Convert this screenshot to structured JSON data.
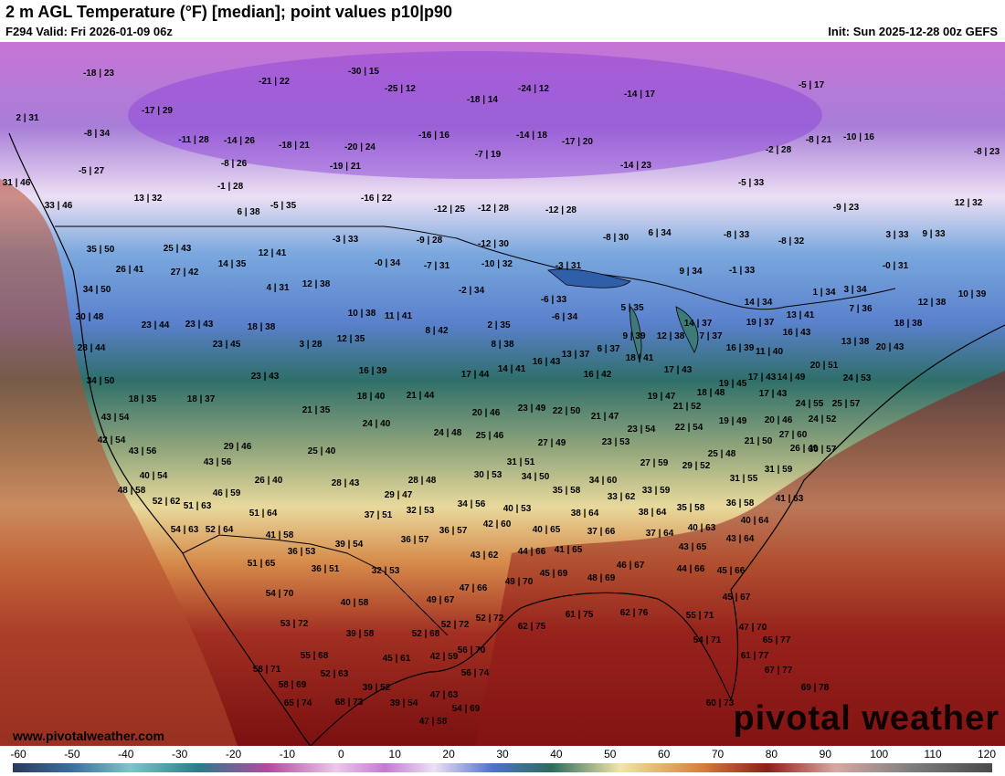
{
  "header": {
    "title": "2 m AGL Temperature (°F) [median]; point values p10|p90",
    "valid": "F294 Valid: Fri 2026-01-09 06z",
    "init": "Init: Sun 2025-12-28 00z GEFS"
  },
  "footer": {
    "url": "www.pivotalweather.com",
    "brand": "pivotal weather"
  },
  "colorbar": {
    "ticks": [
      "-60",
      "-50",
      "-40",
      "-30",
      "-20",
      "-10",
      "0",
      "10",
      "20",
      "30",
      "40",
      "50",
      "60",
      "70",
      "80",
      "90",
      "100",
      "110",
      "120"
    ]
  },
  "points": [
    {
      "t": "-18|23"
    },
    {
      "t": "-30|15"
    },
    {
      "t": "-21|22"
    },
    {
      "t": "-25|12"
    },
    {
      "t": "-24|12"
    },
    {
      "t": "-18|14"
    },
    {
      "t": "-14|17"
    },
    {
      "t": "-5|17"
    },
    {
      "t": "2|31"
    },
    {
      "t": "-17|29"
    },
    {
      "t": "-8|34"
    },
    {
      "t": "-11|28"
    },
    {
      "t": "-14|26"
    },
    {
      "t": "-18|21"
    },
    {
      "t": "-20|24"
    },
    {
      "t": "-16|16"
    },
    {
      "t": "-14|18"
    },
    {
      "t": "-17|20"
    },
    {
      "t": "-8|21"
    },
    {
      "t": "-10|16"
    },
    {
      "t": "-2|28"
    },
    {
      "t": "-8|23"
    },
    {
      "t": "-5|27"
    },
    {
      "t": "-8|26"
    },
    {
      "t": "-19|21"
    },
    {
      "t": "-7|19"
    },
    {
      "t": "-14|23"
    },
    {
      "t": "-1|28"
    },
    {
      "t": "-5|33"
    },
    {
      "t": "31|46"
    },
    {
      "t": "13|32"
    },
    {
      "t": "-16|22"
    },
    {
      "t": "33|46"
    },
    {
      "t": "6|38"
    },
    {
      "t": "-5|35"
    },
    {
      "t": "-12|25"
    },
    {
      "t": "-12|28"
    },
    {
      "t": "-12|28"
    },
    {
      "t": "-9|23"
    },
    {
      "t": "12|32"
    },
    {
      "t": "35|50"
    },
    {
      "t": "25|43"
    },
    {
      "t": "12|41"
    },
    {
      "t": "-3|33"
    },
    {
      "t": "-9|28"
    },
    {
      "t": "-12|30"
    },
    {
      "t": "-8|30"
    },
    {
      "t": "6|34"
    },
    {
      "t": "-8|33"
    },
    {
      "t": "-8|32"
    },
    {
      "t": "3|33"
    },
    {
      "t": "9|33"
    },
    {
      "t": "26|41"
    },
    {
      "t": "27|42"
    },
    {
      "t": "14|35"
    },
    {
      "t": "-0|34"
    },
    {
      "t": "-7|31"
    },
    {
      "t": "-10|32"
    },
    {
      "t": "-3|31"
    },
    {
      "t": "9|34"
    },
    {
      "t": "-1|33"
    },
    {
      "t": "-0|31"
    },
    {
      "t": "34|50"
    },
    {
      "t": "4|31"
    },
    {
      "t": "12|38"
    },
    {
      "t": "-2|34"
    },
    {
      "t": "-6|33"
    },
    {
      "t": "1|34"
    },
    {
      "t": "3|34"
    },
    {
      "t": "10|39"
    },
    {
      "t": "12|38"
    },
    {
      "t": "30|48"
    },
    {
      "t": "23|44"
    },
    {
      "t": "23|43"
    },
    {
      "t": "18|38"
    },
    {
      "t": "10|38"
    },
    {
      "t": "11|41"
    },
    {
      "t": "2|35"
    },
    {
      "t": "-6|34"
    },
    {
      "t": "5|35"
    },
    {
      "t": "14|34"
    },
    {
      "t": "7|36"
    },
    {
      "t": "13|38"
    },
    {
      "t": "18|38"
    },
    {
      "t": "28|44"
    },
    {
      "t": "23|45"
    },
    {
      "t": "3|28"
    },
    {
      "t": "12|35"
    },
    {
      "t": "8|42"
    },
    {
      "t": "8|38"
    },
    {
      "t": "6|37"
    },
    {
      "t": "13|37"
    },
    {
      "t": "9|39"
    },
    {
      "t": "12|38"
    },
    {
      "t": "14|37"
    },
    {
      "t": "19|37"
    },
    {
      "t": "7|37"
    },
    {
      "t": "16|39"
    },
    {
      "t": "16|43"
    },
    {
      "t": "13|41"
    },
    {
      "t": "20|43"
    },
    {
      "t": "34|50"
    },
    {
      "t": "23|43"
    },
    {
      "t": "16|39"
    },
    {
      "t": "17|44"
    },
    {
      "t": "14|41"
    },
    {
      "t": "16|43"
    },
    {
      "t": "16|42"
    },
    {
      "t": "18|41"
    },
    {
      "t": "17|43"
    },
    {
      "t": "17|43"
    },
    {
      "t": "11|40"
    },
    {
      "t": "14|49"
    },
    {
      "t": "20|51"
    },
    {
      "t": "24|53"
    },
    {
      "t": "18|35"
    },
    {
      "t": "18|37"
    },
    {
      "t": "21|35"
    },
    {
      "t": "18|40"
    },
    {
      "t": "21|44"
    },
    {
      "t": "23|49"
    },
    {
      "t": "22|50"
    },
    {
      "t": "21|47"
    },
    {
      "t": "19|47"
    },
    {
      "t": "18|48"
    },
    {
      "t": "19|45"
    },
    {
      "t": "17|43"
    },
    {
      "t": "24|55"
    },
    {
      "t": "25|57"
    },
    {
      "t": "43|54"
    },
    {
      "t": "42|54"
    },
    {
      "t": "24|40"
    },
    {
      "t": "20|46"
    },
    {
      "t": "24|48"
    },
    {
      "t": "25|46"
    },
    {
      "t": "27|49"
    },
    {
      "t": "21|52"
    },
    {
      "t": "23|54"
    },
    {
      "t": "22|54"
    },
    {
      "t": "19|49"
    },
    {
      "t": "20|46"
    },
    {
      "t": "24|52"
    },
    {
      "t": "27|60"
    },
    {
      "t": "43|56"
    },
    {
      "t": "29|46"
    },
    {
      "t": "25|40"
    },
    {
      "t": "26|49"
    },
    {
      "t": "23|53"
    },
    {
      "t": "21|50"
    },
    {
      "t": "25|48"
    },
    {
      "t": "30|57"
    },
    {
      "t": "40|54"
    },
    {
      "t": "43|56"
    },
    {
      "t": "26|40"
    },
    {
      "t": "28|43"
    },
    {
      "t": "28|48"
    },
    {
      "t": "31|51"
    },
    {
      "t": "30|53"
    },
    {
      "t": "34|50"
    },
    {
      "t": "27|59"
    },
    {
      "t": "29|52"
    },
    {
      "t": "31|55"
    },
    {
      "t": "31|59"
    },
    {
      "t": "48|58"
    },
    {
      "t": "46|59"
    },
    {
      "t": "29|47"
    },
    {
      "t": "35|58"
    },
    {
      "t": "34|60"
    },
    {
      "t": "33|62"
    },
    {
      "t": "33|59"
    },
    {
      "t": "36|58"
    },
    {
      "t": "41|63"
    },
    {
      "t": "52|62"
    },
    {
      "t": "51|63"
    },
    {
      "t": "51|64"
    },
    {
      "t": "37|51"
    },
    {
      "t": "32|53"
    },
    {
      "t": "34|56"
    },
    {
      "t": "40|53"
    },
    {
      "t": "38|64"
    },
    {
      "t": "38|64"
    },
    {
      "t": "35|58"
    },
    {
      "t": "40|64"
    },
    {
      "t": "54|63"
    },
    {
      "t": "52|64"
    },
    {
      "t": "41|58"
    },
    {
      "t": "36|57"
    },
    {
      "t": "36|57"
    },
    {
      "t": "42|60"
    },
    {
      "t": "40|65"
    },
    {
      "t": "37|66"
    },
    {
      "t": "37|64"
    },
    {
      "t": "40|63"
    },
    {
      "t": "43|64"
    },
    {
      "t": "36|53"
    },
    {
      "t": "39|54"
    },
    {
      "t": "43|62"
    },
    {
      "t": "44|66"
    },
    {
      "t": "41|65"
    },
    {
      "t": "43|65"
    },
    {
      "t": "51|65"
    },
    {
      "t": "36|51"
    },
    {
      "t": "32|53"
    },
    {
      "t": "46|67"
    },
    {
      "t": "44|66"
    },
    {
      "t": "45|66"
    },
    {
      "t": "45|69"
    },
    {
      "t": "54|70"
    },
    {
      "t": "40|58"
    },
    {
      "t": "47|66"
    },
    {
      "t": "49|70"
    },
    {
      "t": "48|69"
    },
    {
      "t": "45|67"
    },
    {
      "t": "49|67"
    },
    {
      "t": "53|72"
    },
    {
      "t": "52|72"
    },
    {
      "t": "52|72"
    },
    {
      "t": "62|75"
    },
    {
      "t": "61|75"
    },
    {
      "t": "62|76"
    },
    {
      "t": "55|71"
    },
    {
      "t": "47|70"
    },
    {
      "t": "39|58"
    },
    {
      "t": "52|68"
    },
    {
      "t": "56|70"
    },
    {
      "t": "54|71"
    },
    {
      "t": "65|77"
    },
    {
      "t": "55|68"
    },
    {
      "t": "45|61"
    },
    {
      "t": "42|59"
    },
    {
      "t": "61|77"
    },
    {
      "t": "58|71"
    },
    {
      "t": "52|63"
    },
    {
      "t": "56|74"
    },
    {
      "t": "67|77"
    },
    {
      "t": "58|69"
    },
    {
      "t": "39|52"
    },
    {
      "t": "47|63"
    },
    {
      "t": "69|78"
    },
    {
      "t": "65|74"
    },
    {
      "t": "68|73"
    },
    {
      "t": "39|54"
    },
    {
      "t": "54|69"
    },
    {
      "t": "60|73"
    },
    {
      "t": "47|58"
    }
  ]
}
